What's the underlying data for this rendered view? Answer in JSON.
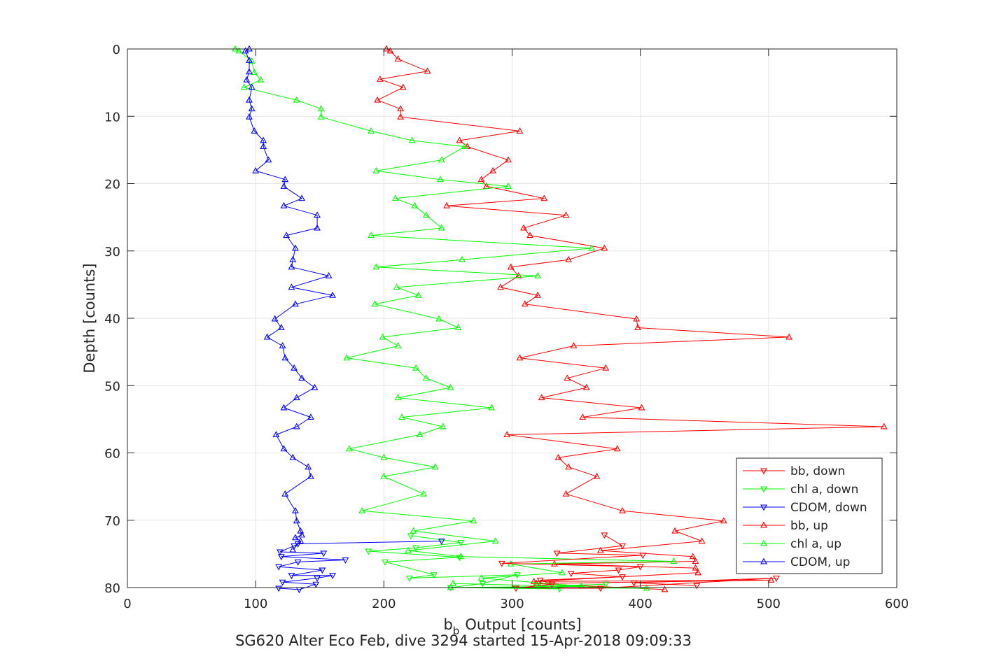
{
  "chart_data": {
    "type": "line",
    "xlabel": "Output [counts]",
    "xlabel_prefix": "b",
    "xlabel_subscript": "b",
    "ylabel": "Depth [counts]",
    "caption": "SG620 Alter Eco Feb, dive 3294 started 15-Apr-2018 09:09:33",
    "xlim": [
      0,
      600
    ],
    "ylim": [
      0,
      80
    ],
    "y_reversed": true,
    "grid": true,
    "legend_position": "bottom-right",
    "x_ticks": [
      0,
      100,
      200,
      300,
      400,
      500,
      600
    ],
    "y_ticks": [
      0,
      10,
      20,
      30,
      40,
      50,
      60,
      70,
      80
    ],
    "series": [
      {
        "name": "bb, down",
        "color": "#ff0000",
        "marker": "triangle-down",
        "points": [
          [
            372,
            72.2
          ],
          [
            386,
            73.8
          ],
          [
            335,
            74.9
          ],
          [
            402,
            75.2
          ],
          [
            292,
            76.4
          ],
          [
            400,
            76.9
          ],
          [
            383,
            77.4
          ],
          [
            346,
            77.9
          ],
          [
            386,
            78.4
          ],
          [
            322,
            78.9
          ],
          [
            331,
            79.5
          ],
          [
            303,
            80.1
          ],
          [
            369,
            80.1
          ],
          [
            506,
            78.6
          ],
          [
            395,
            79.3
          ],
          [
            444,
            79.7
          ]
        ]
      },
      {
        "name": "chl a, down",
        "color": "#00ff00",
        "marker": "triangle-down",
        "points": [
          [
            221,
            72.3
          ],
          [
            260,
            73.3
          ],
          [
            225,
            74.1
          ],
          [
            188,
            74.6
          ],
          [
            259,
            75.5
          ],
          [
            201,
            76.2
          ],
          [
            239,
            78.1
          ],
          [
            220,
            78.6
          ],
          [
            304,
            78.1
          ],
          [
            277,
            79.4
          ],
          [
            252,
            80.0
          ],
          [
            337,
            80.2
          ],
          [
            320,
            79.8
          ],
          [
            373,
            79.5
          ]
        ]
      },
      {
        "name": "CDOM, down",
        "color": "#0000ff",
        "marker": "triangle-down",
        "points": [
          [
            245,
            73.1
          ],
          [
            133,
            73.5
          ],
          [
            130,
            73.8
          ],
          [
            119,
            74.7
          ],
          [
            153,
            74.9
          ],
          [
            120,
            75.4
          ],
          [
            170,
            75.9
          ],
          [
            133,
            76.2
          ],
          [
            118,
            76.9
          ],
          [
            152,
            77.4
          ],
          [
            128,
            78.2
          ],
          [
            160,
            78.2
          ],
          [
            148,
            78.6
          ],
          [
            121,
            79.2
          ],
          [
            147,
            79.5
          ],
          [
            134,
            80.3
          ],
          [
            118,
            80.1
          ]
        ]
      },
      {
        "name": "bb, up",
        "color": "#ff0000",
        "marker": "triangle-up",
        "points": [
          [
            202,
            0.0
          ],
          [
            205,
            0.3
          ],
          [
            211,
            1.5
          ],
          [
            234,
            3.3
          ],
          [
            197,
            4.5
          ],
          [
            215,
            5.7
          ],
          [
            195,
            7.6
          ],
          [
            213,
            8.9
          ],
          [
            213,
            10.1
          ],
          [
            306,
            12.2
          ],
          [
            259,
            13.6
          ],
          [
            265,
            14.5
          ],
          [
            297,
            16.5
          ],
          [
            285,
            18.1
          ],
          [
            276,
            19.4
          ],
          [
            280,
            20.4
          ],
          [
            325,
            22.2
          ],
          [
            249,
            23.3
          ],
          [
            342,
            24.7
          ],
          [
            309,
            26.6
          ],
          [
            314,
            27.7
          ],
          [
            372,
            29.6
          ],
          [
            344,
            31.3
          ],
          [
            299,
            32.4
          ],
          [
            305,
            33.7
          ],
          [
            291,
            35.4
          ],
          [
            320,
            36.6
          ],
          [
            310,
            37.9
          ],
          [
            397,
            40.1
          ],
          [
            398,
            41.4
          ],
          [
            516,
            42.8
          ],
          [
            348,
            44.1
          ],
          [
            306,
            45.9
          ],
          [
            373,
            47.4
          ],
          [
            343,
            48.9
          ],
          [
            358,
            50.3
          ],
          [
            323,
            51.8
          ],
          [
            401,
            53.3
          ],
          [
            355,
            54.7
          ],
          [
            590,
            56.1
          ],
          [
            296,
            57.3
          ],
          [
            382,
            59.4
          ],
          [
            336,
            60.7
          ],
          [
            344,
            62.1
          ],
          [
            366,
            63.5
          ],
          [
            342,
            66.1
          ],
          [
            386,
            68.6
          ],
          [
            465,
            70.1
          ],
          [
            427,
            71.6
          ],
          [
            448,
            73.1
          ],
          [
            369,
            74.5
          ],
          [
            441,
            75.4
          ],
          [
            443,
            76.1
          ],
          [
            333,
            76.5
          ],
          [
            443,
            77.1
          ],
          [
            445,
            77.8
          ],
          [
            317,
            79.1
          ],
          [
            502,
            78.9
          ],
          [
            319,
            79.4
          ],
          [
            419,
            80.3
          ]
        ]
      },
      {
        "name": "chl a, up",
        "color": "#00ff00",
        "marker": "triangle-up",
        "points": [
          [
            84,
            0.0
          ],
          [
            87,
            0.3
          ],
          [
            97,
            1.8
          ],
          [
            99,
            3.5
          ],
          [
            104,
            4.6
          ],
          [
            91,
            5.7
          ],
          [
            132,
            7.6
          ],
          [
            151,
            8.9
          ],
          [
            151,
            10.1
          ],
          [
            190,
            12.2
          ],
          [
            222,
            13.6
          ],
          [
            263,
            14.5
          ],
          [
            245,
            16.5
          ],
          [
            194,
            18.1
          ],
          [
            244,
            19.4
          ],
          [
            297,
            20.4
          ],
          [
            209,
            22.2
          ],
          [
            224,
            23.3
          ],
          [
            233,
            24.7
          ],
          [
            245,
            26.6
          ],
          [
            190,
            27.7
          ],
          [
            362,
            29.6
          ],
          [
            261,
            31.3
          ],
          [
            194,
            32.4
          ],
          [
            320,
            33.7
          ],
          [
            210,
            35.4
          ],
          [
            227,
            36.6
          ],
          [
            193,
            37.9
          ],
          [
            243,
            40.1
          ],
          [
            258,
            41.4
          ],
          [
            199,
            42.8
          ],
          [
            211,
            44.1
          ],
          [
            171,
            45.9
          ],
          [
            225,
            47.4
          ],
          [
            233,
            48.9
          ],
          [
            252,
            50.3
          ],
          [
            211,
            51.8
          ],
          [
            284,
            53.3
          ],
          [
            214,
            54.7
          ],
          [
            246,
            56.1
          ],
          [
            228,
            57.3
          ],
          [
            173,
            59.4
          ],
          [
            200,
            60.7
          ],
          [
            240,
            62.1
          ],
          [
            200,
            63.5
          ],
          [
            231,
            66.1
          ],
          [
            183,
            68.6
          ],
          [
            270,
            70.1
          ],
          [
            223,
            71.6
          ],
          [
            287,
            73.1
          ],
          [
            219,
            74.5
          ],
          [
            260,
            75.4
          ],
          [
            426,
            76.1
          ],
          [
            299,
            76.5
          ],
          [
            339,
            77.8
          ],
          [
            276,
            78.6
          ],
          [
            354,
            79.8
          ],
          [
            252,
            80.0
          ],
          [
            405,
            80.1
          ],
          [
            254,
            79.4
          ]
        ]
      },
      {
        "name": "CDOM, up",
        "color": "#0000ff",
        "marker": "triangle-up",
        "points": [
          [
            95,
            0.0
          ],
          [
            92,
            0.3
          ],
          [
            95,
            1.7
          ],
          [
            95,
            3.4
          ],
          [
            93,
            4.6
          ],
          [
            97,
            5.7
          ],
          [
            95,
            7.6
          ],
          [
            97,
            8.9
          ],
          [
            95,
            10.1
          ],
          [
            99,
            12.2
          ],
          [
            106,
            13.6
          ],
          [
            106,
            14.5
          ],
          [
            110,
            16.5
          ],
          [
            100,
            18.1
          ],
          [
            123,
            19.4
          ],
          [
            122,
            20.4
          ],
          [
            136,
            22.2
          ],
          [
            122,
            23.3
          ],
          [
            148,
            24.7
          ],
          [
            148,
            26.6
          ],
          [
            124,
            27.7
          ],
          [
            131,
            29.6
          ],
          [
            129,
            31.3
          ],
          [
            128,
            32.4
          ],
          [
            157,
            33.7
          ],
          [
            128,
            35.4
          ],
          [
            160,
            36.6
          ],
          [
            131,
            37.9
          ],
          [
            115,
            40.1
          ],
          [
            120,
            41.4
          ],
          [
            109,
            42.8
          ],
          [
            121,
            44.1
          ],
          [
            123,
            45.9
          ],
          [
            130,
            47.4
          ],
          [
            136,
            48.9
          ],
          [
            146,
            50.3
          ],
          [
            132,
            51.8
          ],
          [
            122,
            53.3
          ],
          [
            143,
            54.7
          ],
          [
            132,
            56.1
          ],
          [
            116,
            57.3
          ],
          [
            122,
            59.4
          ],
          [
            129,
            60.7
          ],
          [
            141,
            62.1
          ],
          [
            143,
            63.5
          ],
          [
            123,
            66.1
          ],
          [
            131,
            68.6
          ],
          [
            132,
            70.1
          ],
          [
            135,
            71.6
          ],
          [
            136,
            72.2
          ],
          [
            131,
            72.6
          ],
          [
            135,
            73.1
          ],
          [
            129,
            74.4
          ]
        ]
      }
    ]
  }
}
